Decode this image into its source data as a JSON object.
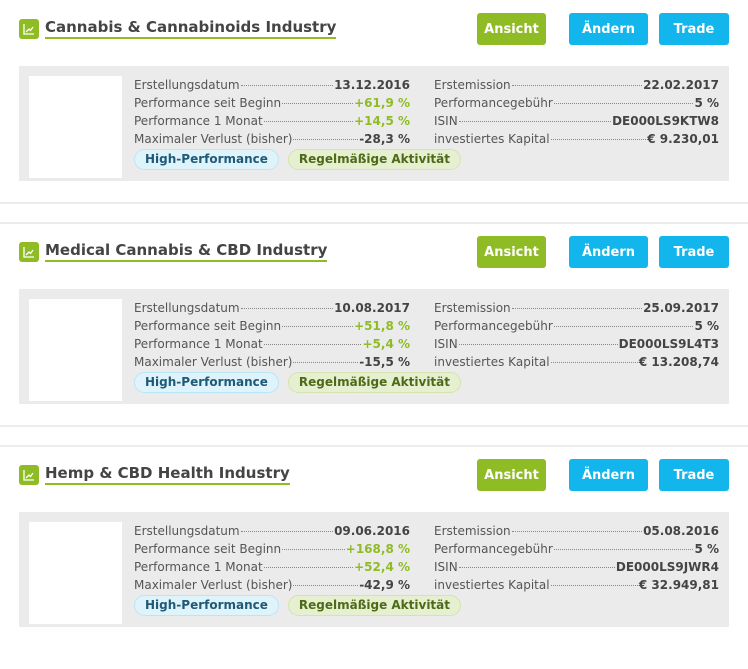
{
  "buttons": {
    "view": "Ansicht",
    "edit": "Ändern",
    "trade": "Trade"
  },
  "labels": {
    "created": "Erstellungsdatum",
    "perf_start": "Performance seit Beginn",
    "perf_month": "Performance 1 Monat",
    "max_loss": "Maximaler Verlust (bisher)",
    "first_issue": "Erstemission",
    "perf_fee": "Performancegebühr",
    "isin": "ISIN",
    "capital": "investiertes Kapital"
  },
  "badges": {
    "high": "High-Performance",
    "regular": "Regelmäßige Aktivität"
  },
  "colors": {
    "accent_green": "#8fbc25",
    "accent_blue": "#12b5ec"
  },
  "cards": [
    {
      "title": "Cannabis & Cannabinoids Industry",
      "created": "13.12.2016",
      "perf_start": "+61,9 %",
      "perf_month": "+14,5 %",
      "max_loss": "-28,3 %",
      "first_issue": "22.02.2017",
      "perf_fee": "5 %",
      "isin": "DE000LS9KTW8",
      "capital": "€ 9.230,01"
    },
    {
      "title": "Medical Cannabis & CBD Industry",
      "created": "10.08.2017",
      "perf_start": "+51,8 %",
      "perf_month": "+5,4 %",
      "max_loss": "-15,5 %",
      "first_issue": "25.09.2017",
      "perf_fee": "5 %",
      "isin": "DE000LS9L4T3",
      "capital": "€ 13.208,74"
    },
    {
      "title": "Hemp & CBD Health Industry",
      "created": "09.06.2016",
      "perf_start": "+168,8 %",
      "perf_month": "+52,4 %",
      "max_loss": "-42,9 %",
      "first_issue": "05.08.2016",
      "perf_fee": "5 %",
      "isin": "DE000LS9JWR4",
      "capital": "€ 32.949,81"
    }
  ]
}
